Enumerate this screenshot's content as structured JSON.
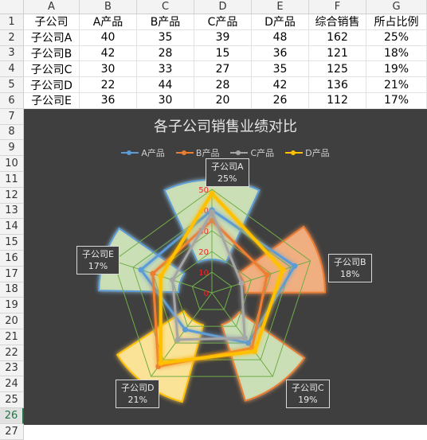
{
  "columns": [
    "A",
    "B",
    "C",
    "D",
    "E",
    "F",
    "G"
  ],
  "rows": [
    "1",
    "2",
    "3",
    "4",
    "5",
    "6",
    "7",
    "8",
    "9",
    "10",
    "11",
    "12",
    "13",
    "14",
    "15",
    "16",
    "17",
    "18",
    "19",
    "20",
    "21",
    "22",
    "23",
    "24",
    "25",
    "26",
    "27"
  ],
  "active_row": "26",
  "table": {
    "headers": [
      "子公司",
      "A产品",
      "B产品",
      "C产品",
      "D产品",
      "综合销售",
      "所占比例"
    ],
    "data": [
      [
        "子公司A",
        "40",
        "35",
        "39",
        "48",
        "162",
        "25%"
      ],
      [
        "子公司B",
        "42",
        "28",
        "15",
        "36",
        "121",
        "18%"
      ],
      [
        "子公司C",
        "30",
        "33",
        "27",
        "35",
        "125",
        "19%"
      ],
      [
        "子公司D",
        "22",
        "44",
        "28",
        "42",
        "136",
        "21%"
      ],
      [
        "子公司E",
        "36",
        "30",
        "20",
        "26",
        "112",
        "17%"
      ]
    ]
  },
  "chart": {
    "title": "各子公司销售业绩对比",
    "legend": [
      {
        "name": "A产品",
        "color": "#5b9bd5"
      },
      {
        "name": "B产品",
        "color": "#ed7d31"
      },
      {
        "name": "C产品",
        "color": "#a5a5a5"
      },
      {
        "name": "D产品",
        "color": "#ffc000"
      }
    ],
    "radial_ticks": [
      "0",
      "10",
      "20",
      "30",
      "40",
      "50"
    ],
    "callouts": [
      {
        "name": "子公司A",
        "pct": "25%"
      },
      {
        "name": "子公司B",
        "pct": "18%"
      },
      {
        "name": "子公司C",
        "pct": "19%"
      },
      {
        "name": "子公司D",
        "pct": "21%"
      },
      {
        "name": "子公司E",
        "pct": "17%"
      }
    ]
  },
  "chart_data": {
    "type": "radar",
    "title": "各子公司销售业绩对比",
    "categories": [
      "子公司A",
      "子公司B",
      "子公司C",
      "子公司D",
      "子公司E"
    ],
    "series": [
      {
        "name": "A产品",
        "values": [
          40,
          42,
          30,
          22,
          36
        ]
      },
      {
        "name": "B产品",
        "values": [
          35,
          28,
          33,
          44,
          30
        ]
      },
      {
        "name": "C产品",
        "values": [
          39,
          15,
          27,
          28,
          20
        ]
      },
      {
        "name": "D产品",
        "values": [
          48,
          36,
          35,
          42,
          26
        ]
      }
    ],
    "pie_share": [
      25,
      18,
      19,
      21,
      17
    ],
    "rlim": [
      0,
      50
    ],
    "legend": "top"
  }
}
